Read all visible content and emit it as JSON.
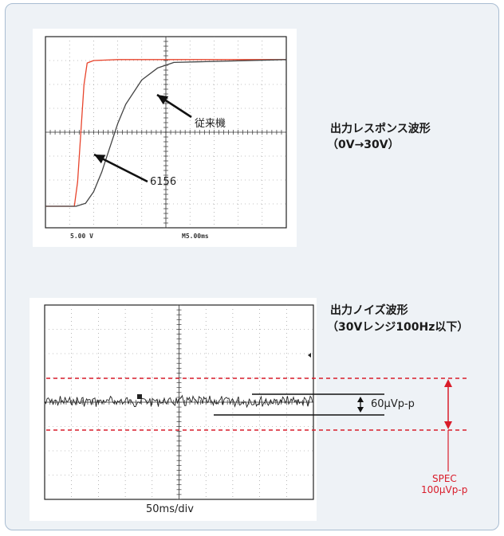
{
  "charts": {
    "response": {
      "title_line1": "出力レスポンス波形",
      "title_line2": "（0V→30V）",
      "scale_left": "5.00 V",
      "scale_right": "M5.00ms",
      "annot_old": "従来機",
      "annot_new": "6156"
    },
    "noise": {
      "title_line1": "出力ノイズ波形",
      "title_line2": "（30Vレンジ100Hz以下）",
      "xaxis": "50ms/div",
      "measure": "60μVp-p",
      "spec_line1": "SPEC",
      "spec_line2": "100μVp-p"
    }
  },
  "colors": {
    "new_trace": "#e8442c",
    "old_trace": "#444444",
    "spec": "#d91c2a",
    "panel_bg": "#eef2f6",
    "panel_border": "#a9bdd2"
  },
  "chart_data": [
    {
      "type": "line",
      "title": "出力レスポンス波形 （0V→30V）",
      "xlabel": "M5.00ms",
      "ylabel": "5.00 V",
      "series": [
        {
          "name": "6156",
          "x": [
            0,
            3.6,
            4.0,
            4.4,
            4.8,
            5.2,
            6,
            9,
            30
          ],
          "y": [
            0,
            0,
            5,
            15,
            25,
            29.5,
            30,
            30.2,
            30.2
          ]
        },
        {
          "name": "従来機",
          "x": [
            0,
            3.8,
            5,
            6,
            7,
            8,
            9,
            10,
            12,
            14,
            16,
            30
          ],
          "y": [
            0,
            0,
            0.6,
            3,
            7,
            12,
            17,
            21,
            26,
            28.5,
            29.6,
            30.2
          ]
        }
      ]
    },
    {
      "type": "line",
      "title": "出力ノイズ波形 （30Vレンジ100Hz以下）",
      "xlabel": "50ms/div",
      "series": [
        {
          "name": "ノイズ",
          "values": []
        }
      ],
      "annotations": [
        "60μVp-p",
        "SPEC 100μVp-p"
      ]
    }
  ]
}
